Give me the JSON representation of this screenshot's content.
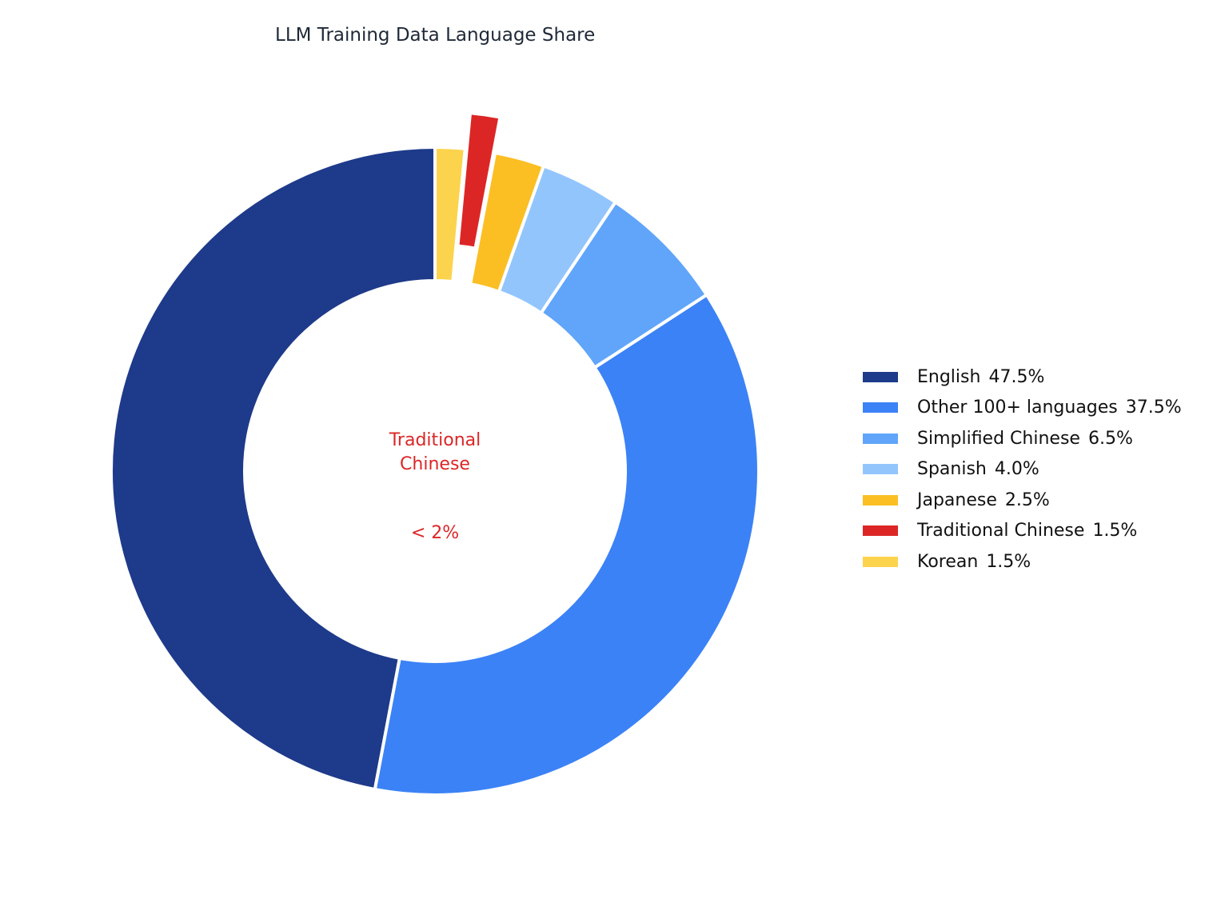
{
  "chart_data": {
    "type": "donut",
    "title": "LLM Training Data Language Share",
    "series": [
      {
        "name": "English",
        "color": "#1e3a8a",
        "values": [
          47.5
        ],
        "value_labels": [
          "47.5%"
        ]
      },
      {
        "name": "Other 100+ languages",
        "color": "#3b82f6",
        "values": [
          37.5
        ],
        "value_labels": [
          "37.5%"
        ]
      },
      {
        "name": "Simplified Chinese",
        "color": "#60a5fa",
        "values": [
          6.5
        ],
        "value_labels": [
          "6.5%"
        ]
      },
      {
        "name": "Spanish",
        "color": "#93c5fd",
        "values": [
          4.0
        ],
        "value_labels": [
          "4.0%"
        ]
      },
      {
        "name": "Japanese",
        "color": "#fbbf24",
        "values": [
          2.5
        ],
        "value_labels": [
          "2.5%"
        ]
      },
      {
        "name": "Traditional Chinese",
        "color": "#dc2626",
        "values": [
          1.5
        ],
        "value_labels": [
          "1.5%"
        ]
      },
      {
        "name": "Korean",
        "color": "#fcd34d",
        "values": [
          1.5
        ],
        "value_labels": [
          "1.5%"
        ]
      }
    ],
    "explode": "Traditional Chinese",
    "direction": "counterclockwise",
    "annotation": {
      "label": "Traditional Chinese",
      "note": "< 2%",
      "color": "#dc2626"
    },
    "legend": "right"
  }
}
